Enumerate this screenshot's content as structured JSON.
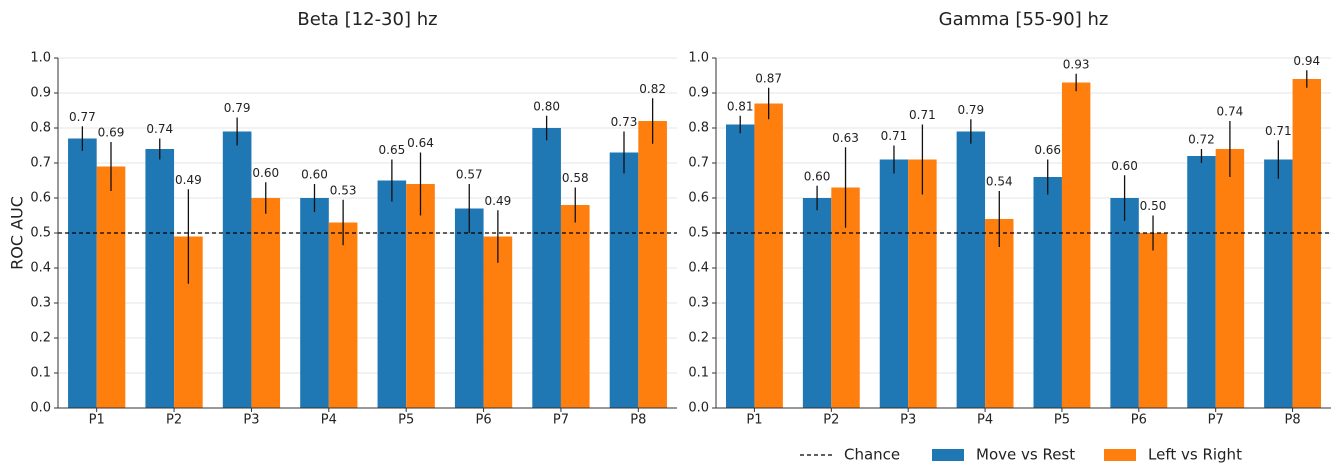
{
  "chart_data": [
    {
      "type": "bar",
      "title": "Beta [12-30] hz",
      "ylabel": "ROC AUC",
      "categories": [
        "P1",
        "P2",
        "P3",
        "P4",
        "P5",
        "P6",
        "P7",
        "P8"
      ],
      "series": [
        {
          "color": "#1f77b4",
          "values": [
            0.77,
            0.74,
            0.79,
            0.6,
            0.65,
            0.57,
            0.8,
            0.73
          ],
          "value_labels": [
            "0.77",
            "0.74",
            "0.79",
            "0.60",
            "0.65",
            "0.57",
            "0.80",
            "0.73"
          ],
          "errors": [
            0.035,
            0.03,
            0.04,
            0.04,
            0.06,
            0.07,
            0.035,
            0.06
          ]
        },
        {
          "color": "#ff7f0e",
          "values": [
            0.69,
            0.49,
            0.6,
            0.53,
            0.64,
            0.49,
            0.58,
            0.82
          ],
          "value_labels": [
            "0.69",
            "0.49",
            "0.60",
            "0.53",
            "0.64",
            "0.49",
            "0.58",
            "0.82"
          ],
          "errors": [
            0.07,
            0.135,
            0.045,
            0.065,
            0.09,
            0.075,
            0.05,
            0.065
          ]
        }
      ],
      "hline": {
        "value": 0.5
      },
      "ylim": [
        0,
        1
      ],
      "yticks": [
        {
          "value": 0,
          "label": "0.0"
        },
        0.1,
        0.2,
        0.3,
        0.4,
        0.5,
        0.6,
        0.7,
        0.8,
        0.9,
        {
          "value": 1,
          "label": "1.0"
        }
      ],
      "grid": true
    },
    {
      "type": "bar",
      "title": "Gamma [55-90] hz",
      "categories": [
        "P1",
        "P2",
        "P3",
        "P4",
        "P5",
        "P6",
        "P7",
        "P8"
      ],
      "series": [
        {
          "name": "Move vs Rest",
          "color": "#1f77b4",
          "values": [
            0.81,
            0.6,
            0.71,
            0.79,
            0.66,
            0.6,
            0.72,
            0.71
          ],
          "value_labels": [
            "0.81",
            "0.60",
            "0.71",
            "0.79",
            "0.66",
            "0.60",
            "0.72",
            "0.71"
          ],
          "errors": [
            0.025,
            0.035,
            0.04,
            0.035,
            0.05,
            0.065,
            0.02,
            0.055
          ]
        },
        {
          "name": "Left vs Right",
          "color": "#ff7f0e",
          "values": [
            0.87,
            0.63,
            0.71,
            0.54,
            0.93,
            0.5,
            0.74,
            0.94
          ],
          "value_labels": [
            "0.87",
            "0.63",
            "0.71",
            "0.54",
            "0.93",
            "0.50",
            "0.74",
            "0.94"
          ],
          "errors": [
            0.045,
            0.115,
            0.1,
            0.08,
            0.025,
            0.05,
            0.08,
            0.025
          ]
        }
      ],
      "hline": {
        "name": "Chance",
        "value": 0.5
      },
      "ylim": [
        0,
        1
      ],
      "yticks": [
        {
          "value": 0,
          "label": "0.0"
        },
        0.1,
        0.2,
        0.3,
        0.4,
        0.5,
        0.6,
        0.7,
        0.8,
        0.9,
        {
          "value": 1,
          "label": "1.0"
        }
      ],
      "grid": true
    }
  ]
}
